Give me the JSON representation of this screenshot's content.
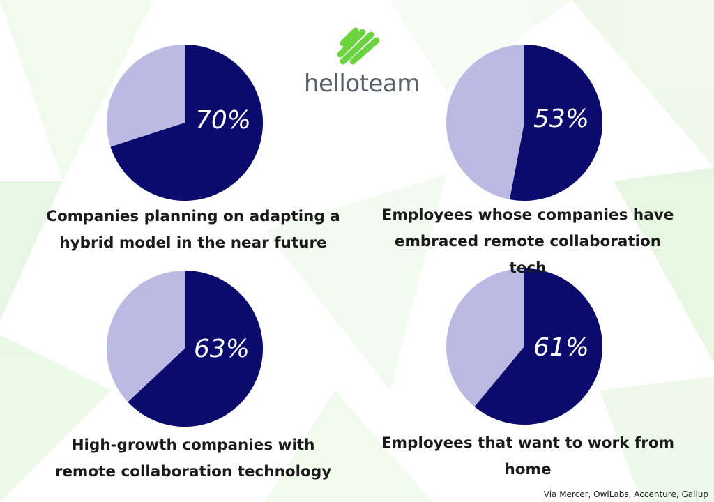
{
  "logo": "helloteam",
  "source": "Via Mercer, OwlLabs, Accenture, Gallup",
  "chart_data": [
    {
      "type": "pie",
      "title": "Companies planning on adapting a hybrid model in the near future",
      "values": [
        70
      ],
      "value_labels": [
        "70%"
      ],
      "color": "#0b0b6e",
      "rest_color": "#bcb9e2"
    },
    {
      "type": "pie",
      "title": "Employees whose companies have embraced remote collaboration tech",
      "values": [
        53
      ],
      "value_labels": [
        "53%"
      ],
      "color": "#0b0b6e",
      "rest_color": "#bcb9e2"
    },
    {
      "type": "pie",
      "title": "High-growth companies with remote collaboration technology",
      "values": [
        63
      ],
      "value_labels": [
        "63%"
      ],
      "color": "#0b0b6e",
      "rest_color": "#bcb9e2"
    },
    {
      "type": "pie",
      "title": "Employees that want to work from home",
      "values": [
        61
      ],
      "value_labels": [
        "61%"
      ],
      "color": "#0b0b6e",
      "rest_color": "#bcb9e2"
    }
  ]
}
